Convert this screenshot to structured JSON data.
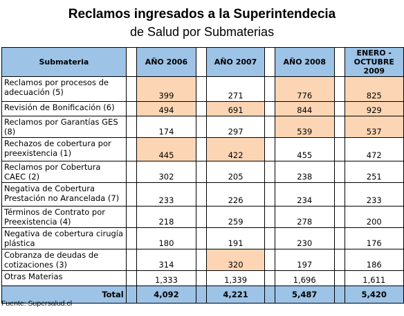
{
  "header": {
    "title": "Reclamos ingresados a la Superintendecia",
    "subtitle": "de Salud por Submaterias"
  },
  "table": {
    "columns": [
      "Submateria",
      "AÑO 2006",
      "AÑO 2007",
      "AÑO 2008",
      "ENERO - OCTUBRE 2009"
    ],
    "rows": [
      {
        "label": "Reclamos por procesos de adecuación (5)",
        "values": [
          "399",
          "271",
          "776",
          "825"
        ],
        "highlight": [
          true,
          false,
          true,
          true
        ]
      },
      {
        "label": "Revisión de Bonificación (6)",
        "values": [
          "494",
          "691",
          "844",
          "929"
        ],
        "highlight": [
          true,
          true,
          true,
          true
        ]
      },
      {
        "label": "Reclamos por Garantías GES (8)",
        "values": [
          "174",
          "297",
          "539",
          "537"
        ],
        "highlight": [
          false,
          false,
          true,
          true
        ]
      },
      {
        "label": "Rechazos de cobertura por preexistencia (1)",
        "values": [
          "445",
          "422",
          "455",
          "472"
        ],
        "highlight": [
          true,
          true,
          false,
          false
        ]
      },
      {
        "label": "Reclamos por Cobertura CAEC (2)",
        "values": [
          "302",
          "205",
          "238",
          "251"
        ],
        "highlight": [
          false,
          false,
          false,
          false
        ]
      },
      {
        "label": "Negativa de Cobertura Prestación no Arancelada (7)",
        "values": [
          "233",
          "226",
          "234",
          "233"
        ],
        "highlight": [
          false,
          false,
          false,
          false
        ]
      },
      {
        "label": "Términos de Contrato por Preexistencia (4)",
        "values": [
          "218",
          "259",
          "278",
          "200"
        ],
        "highlight": [
          false,
          false,
          false,
          false
        ]
      },
      {
        "label": "Negativa de cobertura cirugía plástica",
        "values": [
          "180",
          "191",
          "230",
          "176"
        ],
        "highlight": [
          false,
          false,
          false,
          false
        ]
      },
      {
        "label": "Cobranza de deudas de cotizaciones (3)",
        "values": [
          "314",
          "320",
          "197",
          "186"
        ],
        "highlight": [
          false,
          true,
          false,
          false
        ]
      },
      {
        "label": "Otras Materias",
        "values": [
          "1,333",
          "1,339",
          "1,696",
          "1,611"
        ],
        "highlight": [
          false,
          false,
          false,
          false
        ]
      }
    ],
    "total": {
      "label": "Total",
      "values": [
        "4,092",
        "4,221",
        "5,487",
        "5,420"
      ]
    }
  },
  "footer": {
    "source": "Fuente: Supersalud.cl"
  }
}
